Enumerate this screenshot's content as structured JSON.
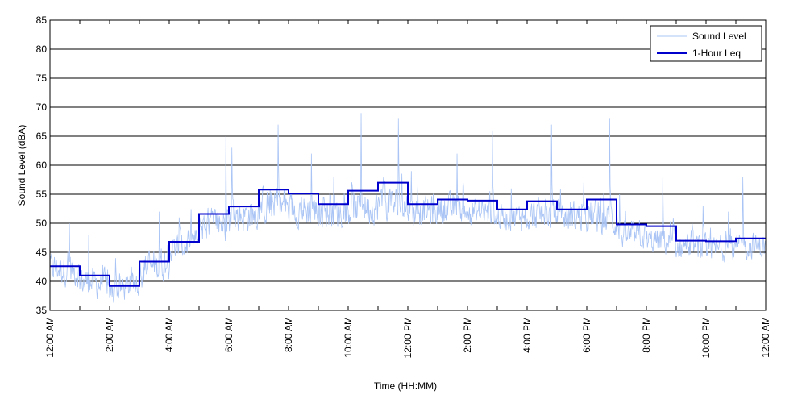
{
  "chart_data": {
    "type": "line",
    "xlabel": "Time (HH:MM)",
    "ylabel": "Sound Level (dBA)",
    "ylim": [
      35,
      85
    ],
    "xlim_hours": [
      0,
      24
    ],
    "y_ticks": [
      35,
      40,
      45,
      50,
      55,
      60,
      65,
      70,
      75,
      80,
      85
    ],
    "x_tick_hours": [
      0,
      2,
      4,
      6,
      8,
      10,
      12,
      14,
      16,
      18,
      20,
      22,
      24
    ],
    "x_tick_labels": [
      "12:00 AM",
      "2:00 AM",
      "4:00 AM",
      "6:00 AM",
      "8:00 AM",
      "10:00 AM",
      "12:00 PM",
      "2:00 PM",
      "4:00 PM",
      "6:00 PM",
      "8:00 PM",
      "10:00 PM",
      "12:00 AM"
    ],
    "grid": "horizontal",
    "legend_position": "top-right",
    "series": [
      {
        "name": "Sound Level",
        "color": "#a9c4f5",
        "style": "thin-line",
        "hour_profile": [
          {
            "hour": 0,
            "mean": 42.5,
            "spread": 3.5,
            "peak": 50
          },
          {
            "hour": 1,
            "mean": 40.0,
            "spread": 3.5,
            "peak": 48
          },
          {
            "hour": 2,
            "mean": 38.0,
            "spread": 3.0,
            "peak": 44
          },
          {
            "hour": 3,
            "mean": 42.0,
            "spread": 4.0,
            "peak": 52
          },
          {
            "hour": 4,
            "mean": 45.5,
            "spread": 3.5,
            "peak": 51
          },
          {
            "hour": 5,
            "mean": 49.5,
            "spread": 4.0,
            "peak": 65
          },
          {
            "hour": 6,
            "mean": 51.0,
            "spread": 4.0,
            "peak": 63
          },
          {
            "hour": 7,
            "mean": 53.0,
            "spread": 4.5,
            "peak": 67
          },
          {
            "hour": 8,
            "mean": 52.5,
            "spread": 4.0,
            "peak": 62
          },
          {
            "hour": 9,
            "mean": 51.5,
            "spread": 3.5,
            "peak": 58
          },
          {
            "hour": 10,
            "mean": 52.5,
            "spread": 4.0,
            "peak": 69
          },
          {
            "hour": 11,
            "mean": 53.5,
            "spread": 4.0,
            "peak": 68
          },
          {
            "hour": 12,
            "mean": 52.0,
            "spread": 3.5,
            "peak": 59
          },
          {
            "hour": 13,
            "mean": 52.5,
            "spread": 3.5,
            "peak": 62
          },
          {
            "hour": 14,
            "mean": 52.0,
            "spread": 3.5,
            "peak": 66
          },
          {
            "hour": 15,
            "mean": 51.0,
            "spread": 3.0,
            "peak": 56
          },
          {
            "hour": 16,
            "mean": 51.5,
            "spread": 3.5,
            "peak": 67
          },
          {
            "hour": 17,
            "mean": 51.0,
            "spread": 3.5,
            "peak": 57
          },
          {
            "hour": 18,
            "mean": 51.5,
            "spread": 4.0,
            "peak": 68
          },
          {
            "hour": 19,
            "mean": 48.0,
            "spread": 3.0,
            "peak": 55
          },
          {
            "hour": 20,
            "mean": 47.0,
            "spread": 3.0,
            "peak": 58
          },
          {
            "hour": 21,
            "mean": 46.0,
            "spread": 3.0,
            "peak": 53
          },
          {
            "hour": 22,
            "mean": 45.5,
            "spread": 3.0,
            "peak": 52
          },
          {
            "hour": 23,
            "mean": 46.0,
            "spread": 3.0,
            "peak": 58
          }
        ]
      },
      {
        "name": "1-Hour Leq",
        "color": "#0000cc",
        "style": "step",
        "x": [
          0,
          1,
          2,
          3,
          4,
          5,
          6,
          7,
          8,
          9,
          10,
          11,
          12,
          13,
          14,
          15,
          16,
          17,
          18,
          19,
          20,
          21,
          22,
          23
        ],
        "values": [
          42.6,
          41.0,
          39.2,
          43.4,
          46.8,
          51.6,
          52.9,
          55.8,
          55.1,
          53.3,
          55.6,
          57.0,
          53.3,
          54.1,
          53.9,
          52.4,
          53.8,
          52.4,
          54.1,
          49.8,
          49.5,
          47.0,
          46.9,
          47.4
        ]
      }
    ]
  }
}
